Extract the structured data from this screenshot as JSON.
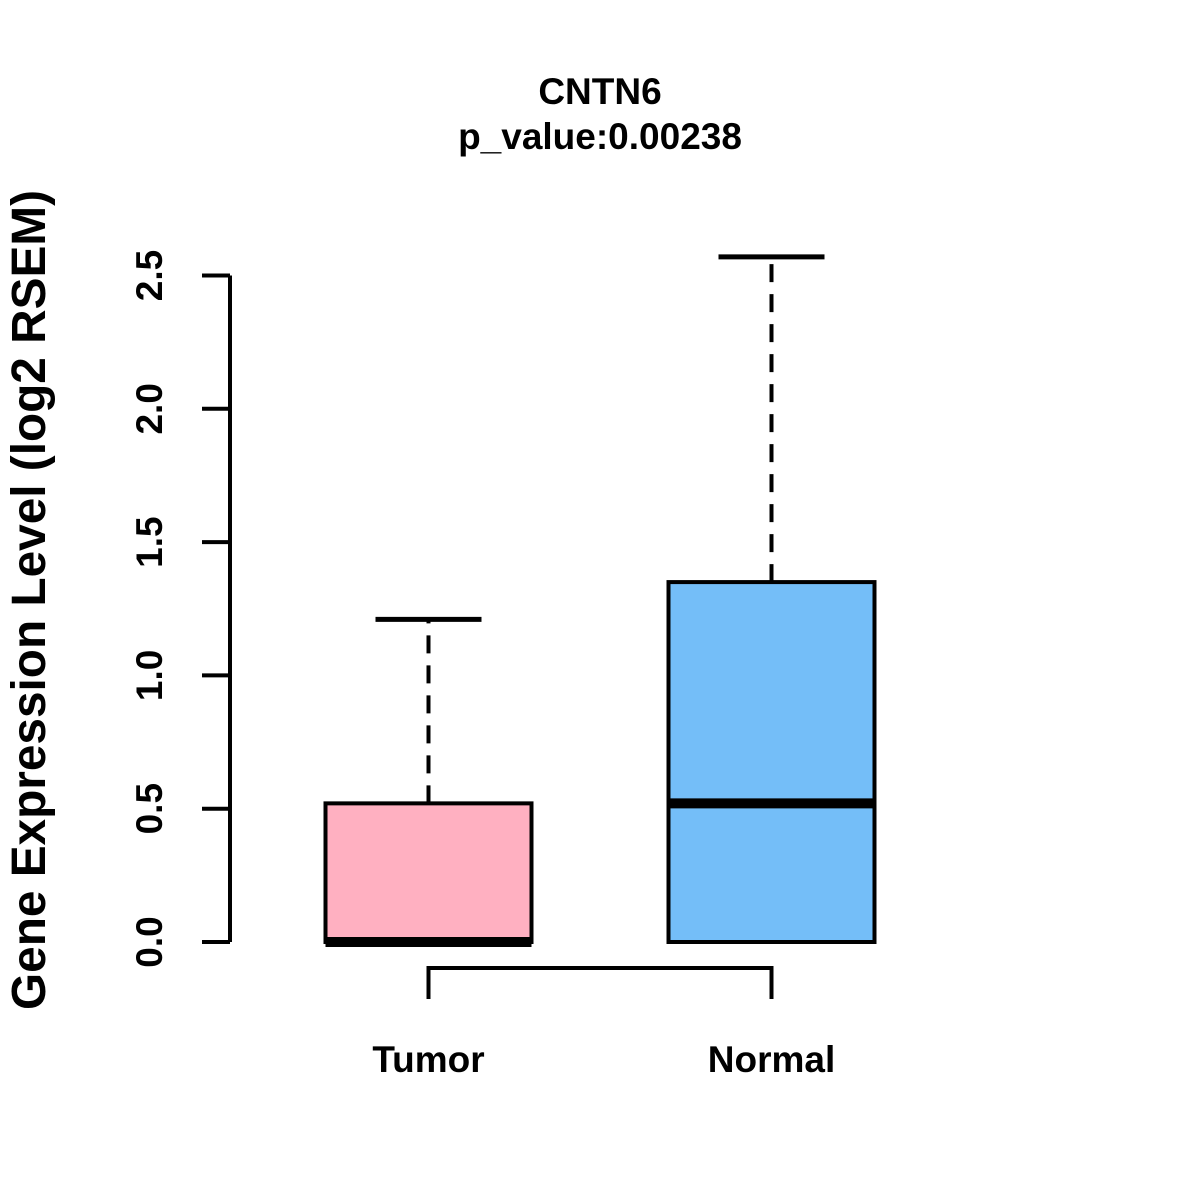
{
  "figure": {
    "background": "#FFFFFF"
  },
  "chart_data": {
    "type": "boxplot",
    "title": "CNTN6",
    "subtitle": "p_value:0.00238",
    "ylabel": "Gene Expression Level (log2 RSEM)",
    "xlabel": "",
    "categories": [
      "Tumor",
      "Normal"
    ],
    "series": [
      {
        "name": "Tumor",
        "color": "#FFB0C1",
        "min": 0.0,
        "q1": 0.0,
        "median": 0.0,
        "q3": 0.52,
        "max": 1.21
      },
      {
        "name": "Normal",
        "color": "#74BEF8",
        "min": 0.0,
        "q1": 0.0,
        "median": 0.52,
        "q3": 1.35,
        "max": 2.57
      }
    ],
    "ytick_labels": [
      "0.0",
      "0.5",
      "1.0",
      "1.5",
      "2.0",
      "2.5"
    ],
    "ylim": [
      0,
      2.58
    ],
    "grid": false,
    "legend": "none",
    "annotations": [
      {
        "type": "comparison-bracket",
        "between": [
          "Tumor",
          "Normal"
        ]
      }
    ],
    "colors": {
      "axis": "#000000",
      "text": "#000000",
      "tumor_box": "#FFB0C1",
      "normal_box": "#74BEF8"
    }
  }
}
